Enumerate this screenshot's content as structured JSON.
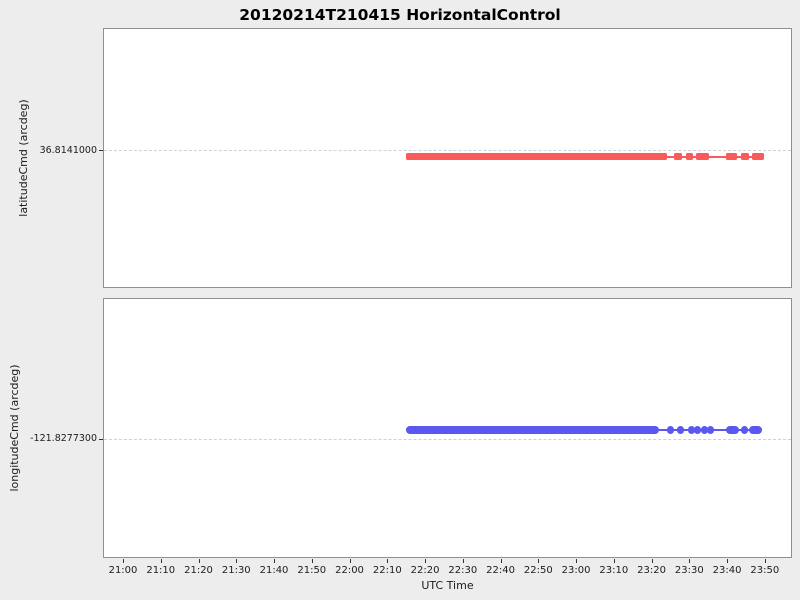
{
  "title": "20120214T210415 HorizontalControl",
  "colors": {
    "figure_bg": "#ededed",
    "plot_bg": "#ffffff",
    "frame": "#8f8f8f",
    "grid": "#d2d2d2",
    "latitude_series": "#fa5a5a",
    "longitude_series": "#5a58ef"
  },
  "x_axis": {
    "label": "UTC Time",
    "tick_labels": [
      "21:00",
      "21:10",
      "21:20",
      "21:30",
      "21:40",
      "21:50",
      "22:00",
      "22:10",
      "22:20",
      "22:30",
      "22:40",
      "22:50",
      "23:00",
      "23:10",
      "23:20",
      "23:30",
      "23:40",
      "23:50"
    ],
    "tick_minutes": [
      0,
      10,
      20,
      30,
      40,
      50,
      60,
      70,
      80,
      90,
      100,
      110,
      120,
      130,
      140,
      150,
      160,
      170
    ],
    "xlim_minutes": [
      -5.3,
      177.2
    ]
  },
  "chart_data": [
    {
      "type": "line",
      "series": "latitudeCmd",
      "ylabel": "latitudeCmd (arcdeg)",
      "ytick_label": "36.8141000",
      "constant_value_arcdeg": 36.8141,
      "marker": "square",
      "color_key": "latitude_series",
      "grid_y_frac": 0.469,
      "line_y_frac": 0.496,
      "marker_px": 7,
      "connector_minutes": [
        74.9,
        170.0
      ],
      "segments_minutes": [
        [
          74.9,
          144.3
        ],
        [
          146.2,
          148.3
        ],
        [
          149.3,
          151.2
        ],
        [
          152.0,
          155.4
        ],
        [
          159.9,
          162.8
        ],
        [
          163.9,
          166.0
        ],
        [
          166.8,
          170.0
        ]
      ]
    },
    {
      "type": "line",
      "series": "longitudeCmd",
      "ylabel": "longitudeCmd (arcdeg)",
      "ytick_label": "-121.8277300",
      "constant_value_arcdeg": -121.82773,
      "marker": "circle",
      "color_key": "longitude_series",
      "grid_y_frac": 0.542,
      "line_y_frac": 0.506,
      "marker_px": 8,
      "connector_minutes": [
        74.9,
        169.4
      ],
      "segments_minutes": [
        [
          74.9,
          142.2
        ],
        [
          144.2,
          146.0
        ],
        [
          146.9,
          148.7
        ],
        [
          149.8,
          151.6
        ],
        [
          151.4,
          153.2
        ],
        [
          153.2,
          155.0
        ],
        [
          154.8,
          156.6
        ],
        [
          159.9,
          163.4
        ],
        [
          163.8,
          165.6
        ],
        [
          166.0,
          169.4
        ]
      ]
    }
  ]
}
